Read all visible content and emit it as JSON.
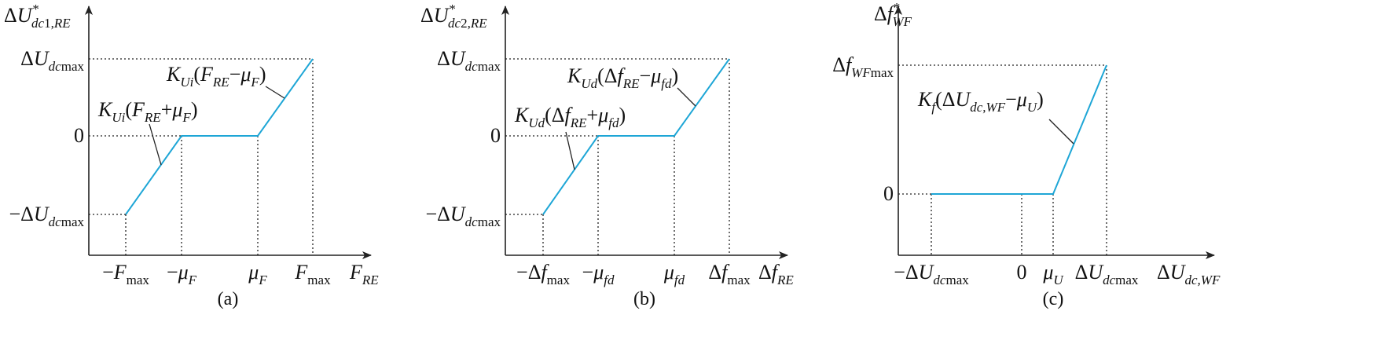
{
  "panels": [
    {
      "caption": "(a)",
      "y_label": [
        {
          "roman": "Δ"
        },
        {
          "text": "U"
        },
        {
          "sup": "*"
        },
        {
          "sub": "dc"
        },
        {
          "subr": "1,"
        },
        {
          "sub": "RE"
        }
      ],
      "x_label": [
        {
          "text": "F"
        },
        {
          "sub": "RE"
        }
      ],
      "y_ticks": [
        [
          {
            "roman": "Δ"
          },
          {
            "text": "U"
          },
          {
            "sub": "dc"
          },
          {
            "subr": "max"
          }
        ],
        [
          {
            "roman": "0"
          }
        ],
        [
          {
            "roman": "−Δ"
          },
          {
            "text": "U"
          },
          {
            "sub": "dc"
          },
          {
            "subr": "max"
          }
        ]
      ],
      "x_ticks": [
        [
          {
            "roman": "−"
          },
          {
            "text": "F"
          },
          {
            "subr": "max"
          }
        ],
        [
          {
            "roman": "−"
          },
          {
            "text": "μ"
          },
          {
            "sub": "F"
          }
        ],
        [
          {
            "text": "μ"
          },
          {
            "sub": "F"
          }
        ],
        [
          {
            "text": "F"
          },
          {
            "subr": "max"
          }
        ]
      ],
      "annotations": [
        [
          {
            "text": "K"
          },
          {
            "sub": "Ui"
          },
          {
            "roman": "("
          },
          {
            "text": "F"
          },
          {
            "sub": "RE"
          },
          {
            "roman": "+"
          },
          {
            "text": "μ"
          },
          {
            "sub": "F"
          },
          {
            "roman": ")"
          }
        ],
        [
          {
            "text": "K"
          },
          {
            "sub": "Ui"
          },
          {
            "roman": "("
          },
          {
            "text": "F"
          },
          {
            "sub": "RE"
          },
          {
            "roman": "−"
          },
          {
            "text": "μ"
          },
          {
            "sub": "F"
          },
          {
            "roman": ")"
          }
        ]
      ]
    },
    {
      "caption": "(b)",
      "y_label": [
        {
          "roman": "Δ"
        },
        {
          "text": "U"
        },
        {
          "sup": "*"
        },
        {
          "sub": "dc"
        },
        {
          "subr": "2,"
        },
        {
          "sub": "RE"
        }
      ],
      "x_label": [
        {
          "roman": "Δ"
        },
        {
          "text": "f"
        },
        {
          "sub": "RE"
        }
      ],
      "y_ticks": [
        [
          {
            "roman": "Δ"
          },
          {
            "text": "U"
          },
          {
            "sub": "dc"
          },
          {
            "subr": "max"
          }
        ],
        [
          {
            "roman": "0"
          }
        ],
        [
          {
            "roman": "−Δ"
          },
          {
            "text": "U"
          },
          {
            "sub": "dc"
          },
          {
            "subr": "max"
          }
        ]
      ],
      "x_ticks": [
        [
          {
            "roman": "−Δ"
          },
          {
            "text": "f"
          },
          {
            "subr": "max"
          }
        ],
        [
          {
            "roman": "−"
          },
          {
            "text": "μ"
          },
          {
            "sub": "fd"
          }
        ],
        [
          {
            "text": "μ"
          },
          {
            "sub": "fd"
          }
        ],
        [
          {
            "roman": "Δ"
          },
          {
            "text": "f"
          },
          {
            "subr": "max"
          }
        ]
      ],
      "annotations": [
        [
          {
            "text": "K"
          },
          {
            "sub": "Ud"
          },
          {
            "roman": "(Δ"
          },
          {
            "text": "f"
          },
          {
            "sub": "RE"
          },
          {
            "roman": "+"
          },
          {
            "text": "μ"
          },
          {
            "sub": "fd"
          },
          {
            "roman": ")"
          }
        ],
        [
          {
            "text": "K"
          },
          {
            "sub": "Ud"
          },
          {
            "roman": "(Δ"
          },
          {
            "text": "f"
          },
          {
            "sub": "RE"
          },
          {
            "roman": "−"
          },
          {
            "text": "μ"
          },
          {
            "sub": "fd"
          },
          {
            "roman": ")"
          }
        ]
      ]
    },
    {
      "caption": "(c)",
      "y_label": [
        {
          "roman": "Δ"
        },
        {
          "text": "f"
        },
        {
          "sup": "*"
        },
        {
          "sub": "WF"
        }
      ],
      "x_label": [
        {
          "roman": "Δ"
        },
        {
          "text": "U"
        },
        {
          "sub": "dc,WF"
        }
      ],
      "y_ticks": [
        [
          {
            "roman": "Δ"
          },
          {
            "text": "f"
          },
          {
            "sub": "WF"
          },
          {
            "subr": "max"
          }
        ],
        [
          {
            "roman": "0"
          }
        ]
      ],
      "x_ticks": [
        [
          {
            "roman": "−Δ"
          },
          {
            "text": "U"
          },
          {
            "sub": "dc"
          },
          {
            "subr": "max"
          }
        ],
        [
          {
            "roman": "0"
          }
        ],
        [
          {
            "text": "μ"
          },
          {
            "sub": "U"
          }
        ],
        [
          {
            "roman": "Δ"
          },
          {
            "text": "U"
          },
          {
            "sub": "dc"
          },
          {
            "subr": "max"
          }
        ]
      ],
      "annotations": [
        [
          {
            "text": "K"
          },
          {
            "sub": "f"
          },
          {
            "roman": "(Δ"
          },
          {
            "text": "U"
          },
          {
            "sub": "dc,WF"
          },
          {
            "roman": "−"
          },
          {
            "text": "μ"
          },
          {
            "sub": "U"
          },
          {
            "roman": ")"
          }
        ]
      ]
    }
  ]
}
